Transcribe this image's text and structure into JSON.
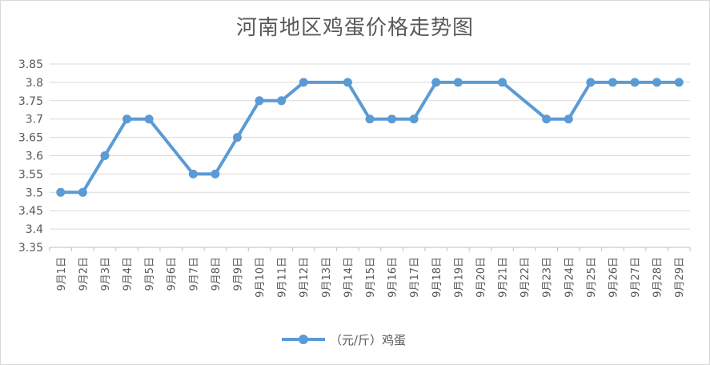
{
  "chart_data": {
    "type": "line",
    "title": "河南地区鸡蛋价格走势图",
    "categories": [
      "9月1日",
      "9月2日",
      "9月3日",
      "9月4日",
      "9月5日",
      "9月6日",
      "9月7日",
      "9月8日",
      "9月9日",
      "9月10日",
      "9月11日",
      "9月12日",
      "9月13日",
      "9月14日",
      "9月15日",
      "9月16日",
      "9月17日",
      "9月18日",
      "9月19日",
      "9月20日",
      "9月21日",
      "9月22日",
      "9月23日",
      "9月24日",
      "9月25日",
      "9月26日",
      "9月27日",
      "9月28日",
      "9月29日"
    ],
    "series": [
      {
        "name": "（元/斤）鸡蛋",
        "color": "#5b9bd5",
        "values": [
          3.5,
          3.5,
          3.6,
          3.7,
          3.7,
          null,
          3.55,
          3.55,
          3.65,
          3.75,
          3.75,
          3.8,
          null,
          3.8,
          3.7,
          3.7,
          3.7,
          3.8,
          3.8,
          null,
          3.8,
          null,
          3.7,
          3.7,
          3.8,
          3.8,
          3.8,
          3.8,
          3.8
        ]
      }
    ],
    "ylim": [
      3.35,
      3.85
    ],
    "yticks": [
      "3.35",
      "3.4",
      "3.45",
      "3.5",
      "3.55",
      "3.6",
      "3.65",
      "3.7",
      "3.75",
      "3.8",
      "3.85"
    ],
    "grid": true,
    "legend_position": "bottom",
    "xlabel": "",
    "ylabel": ""
  }
}
